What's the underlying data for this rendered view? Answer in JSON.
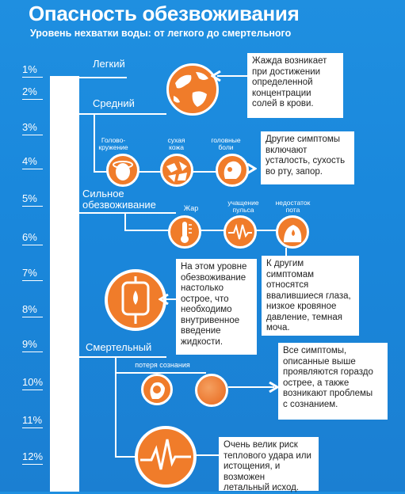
{
  "header": {
    "title": "Опасность обезвоживания",
    "subtitle": "Уровень нехватки воды: от легкого до смертельного"
  },
  "scale": {
    "percentages": [
      "1%",
      "2%",
      "3%",
      "4%",
      "5%",
      "6%",
      "7%",
      "8%",
      "9%",
      "10%",
      "11%",
      "12%"
    ]
  },
  "levels": {
    "mild": "Легкий",
    "moderate": "Средний",
    "severe_line1": "Сильное",
    "severe_line2": "обезвоживание",
    "lethal": "Смертельный"
  },
  "symptoms": {
    "dizziness_1": "Голово-",
    "dizziness_2": "кружение",
    "dry_skin_1": "сухая",
    "dry_skin_2": "кожа",
    "headache_1": "головные",
    "headache_2": "боли",
    "fever": "Жар",
    "pulse_1": "учащение",
    "pulse_2": "пульса",
    "sweat_1": "недостаток",
    "sweat_2": "пота",
    "unconscious": "потеря сознания"
  },
  "notes": {
    "thirst": [
      "Жажда возникает",
      "при достижении",
      "определенной",
      "концентрации",
      "солей в крови."
    ],
    "other": [
      "Другие симптомы",
      "включают",
      "усталость, сухость",
      "во рту, запор."
    ],
    "iv": [
      "На этом уровне",
      "обезвоживание",
      "настолько",
      "острое, что",
      "необходимо",
      "внутривенное",
      "введение",
      "жидкости."
    ],
    "extra": [
      "К другим",
      "симптомам",
      "относятся",
      "ввалившиеся глаза,",
      "низкое кровяное",
      "давление, темная",
      "моча."
    ],
    "all": [
      "Все симптомы,",
      "описанные выше",
      "проявляются гораздо",
      "острее, а также",
      "возникают проблемы",
      "с сознанием."
    ],
    "risk": [
      "Очень велик риск",
      "теплового удара или",
      "истощения, и возможен",
      "летальный исход."
    ]
  },
  "colors": {
    "background": "#1f8fe0",
    "accent": "#f07c2a"
  }
}
